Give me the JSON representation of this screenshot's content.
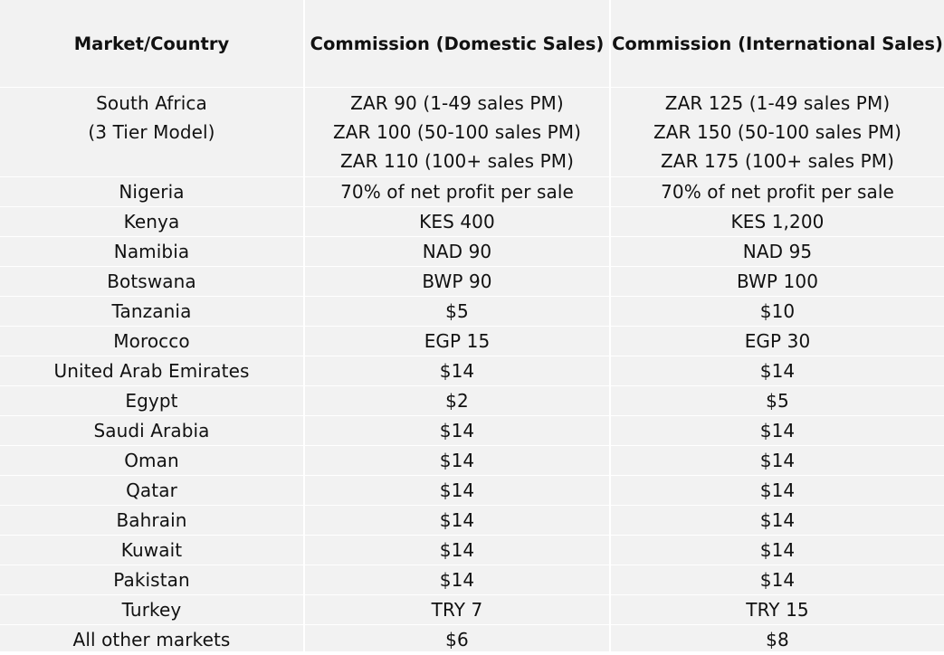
{
  "headers": {
    "market": "Market/Country",
    "domestic": "Commission (Domestic Sales)",
    "international": "Commission (International Sales)"
  },
  "south_africa": {
    "country_line1": "South Africa",
    "country_line2": "(3 Tier Model)",
    "domestic": [
      "ZAR 90 (1-49 sales PM)",
      "ZAR 100 (50-100 sales PM)",
      "ZAR 110 (100+ sales PM)"
    ],
    "international": [
      "ZAR 125 (1-49 sales PM)",
      "ZAR 150 (50-100 sales PM)",
      "ZAR 175 (100+ sales PM)"
    ]
  },
  "rows": [
    {
      "country": "Nigeria",
      "domestic": "70% of net profit per sale",
      "international": "70% of net profit per sale"
    },
    {
      "country": "Kenya",
      "domestic": "KES 400",
      "international": "KES 1,200"
    },
    {
      "country": "Namibia",
      "domestic": "NAD 90",
      "international": "NAD 95"
    },
    {
      "country": "Botswana",
      "domestic": "BWP 90",
      "international": "BWP 100"
    },
    {
      "country": "Tanzania",
      "domestic": "$5",
      "international": "$10"
    },
    {
      "country": "Morocco",
      "domestic": "EGP 15",
      "international": "EGP 30"
    },
    {
      "country": "United Arab Emirates",
      "domestic": "$14",
      "international": "$14"
    },
    {
      "country": "Egypt",
      "domestic": "$2",
      "international": "$5"
    },
    {
      "country": "Saudi Arabia",
      "domestic": "$14",
      "international": "$14"
    },
    {
      "country": "Oman",
      "domestic": "$14",
      "international": "$14"
    },
    {
      "country": "Qatar",
      "domestic": "$14",
      "international": "$14"
    },
    {
      "country": "Bahrain",
      "domestic": "$14",
      "international": "$14"
    },
    {
      "country": "Kuwait",
      "domestic": "$14",
      "international": "$14"
    },
    {
      "country": "Pakistan",
      "domestic": "$14",
      "international": "$14"
    },
    {
      "country": "Turkey",
      "domestic": "TRY 7",
      "international": "TRY 15"
    },
    {
      "country": "All other markets",
      "domestic": "$6",
      "international": "$8"
    }
  ],
  "colors": {
    "cell_background": "#f2f2f2",
    "grid_lines": "#ffffff",
    "text": "#111111"
  }
}
